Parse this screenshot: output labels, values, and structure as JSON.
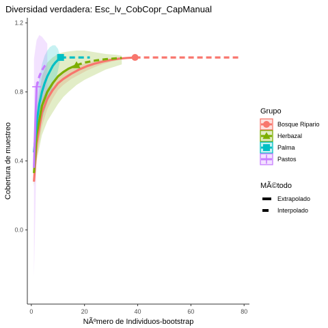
{
  "chart_data": {
    "type": "line",
    "title": "Diversidad verdadera: Esc_lv_CobCopr_CapManual",
    "xlabel": "NÃºmero de Individuos-bootstrap",
    "ylabel": "Cobertura de muestreo",
    "xlim": [
      -1.5,
      82
    ],
    "ylim": [
      -0.43,
      1.23
    ],
    "x_ticks": [
      0,
      20,
      40,
      60,
      80
    ],
    "y_ticks": [
      0.0,
      0.4,
      0.8,
      1.2
    ],
    "x_tick_labels": [
      "0",
      "20",
      "40",
      "60",
      "80"
    ],
    "y_tick_labels": [
      "0.0",
      "0.4",
      "0.8",
      "1.2"
    ],
    "grid": false,
    "legend_position": "right",
    "legend_groups": [
      {
        "title": "Grupo",
        "entries": [
          {
            "label": "Bosque Ripario",
            "color": "#F8766D",
            "shape": "circle"
          },
          {
            "label": "Herbazal",
            "color": "#7CAE00",
            "shape": "triangle"
          },
          {
            "label": "Palma",
            "color": "#00BFC4",
            "shape": "square"
          },
          {
            "label": "Pastos",
            "color": "#C77CFF",
            "shape": "cross"
          }
        ]
      },
      {
        "title": "MÃ©todo",
        "entries": [
          {
            "label": "Extrapolado",
            "linetype": "solid"
          },
          {
            "label": "Interpolado",
            "linetype": "dashed"
          }
        ]
      }
    ],
    "series": [
      {
        "name": "Bosque Ripario",
        "color": "#F8766D",
        "shape": "circle",
        "observed": {
          "x": 39,
          "y": 1.0
        },
        "interpolated": {
          "x": [
            1,
            2,
            4,
            6,
            8,
            10,
            12,
            15,
            18,
            21,
            24,
            27,
            30,
            33,
            36,
            39
          ],
          "y": [
            0.28,
            0.5,
            0.68,
            0.76,
            0.81,
            0.85,
            0.875,
            0.905,
            0.93,
            0.95,
            0.965,
            0.977,
            0.986,
            0.993,
            0.997,
            1.0
          ],
          "lower": [
            0.26,
            0.42,
            0.6,
            0.7,
            0.76,
            0.81,
            0.84,
            0.875,
            0.9,
            0.925,
            0.945,
            0.962,
            0.975,
            0.985,
            0.993,
            1.0
          ],
          "upper": [
            0.3,
            0.58,
            0.76,
            0.82,
            0.86,
            0.89,
            0.91,
            0.935,
            0.955,
            0.97,
            0.98,
            0.988,
            0.994,
            0.998,
            1.0,
            1.0
          ]
        },
        "extrapolated": {
          "x": [
            39,
            50,
            60,
            70,
            78
          ],
          "y": [
            1.0,
            1.0,
            1.0,
            1.0,
            1.0
          ],
          "lower": [
            1.0,
            1.0,
            1.0,
            1.0,
            1.0
          ],
          "upper": [
            1.0,
            1.0,
            1.0,
            1.0,
            1.0
          ]
        }
      },
      {
        "name": "Herbazal",
        "color": "#7CAE00",
        "shape": "triangle",
        "observed": {
          "x": 17,
          "y": 0.955
        },
        "interpolated": {
          "x": [
            1,
            2,
            4,
            6,
            8,
            10,
            12,
            14,
            17
          ],
          "y": [
            0.33,
            0.55,
            0.72,
            0.8,
            0.85,
            0.89,
            0.915,
            0.935,
            0.955
          ],
          "lower": [
            0.25,
            0.4,
            0.55,
            0.63,
            0.68,
            0.73,
            0.77,
            0.8,
            0.84
          ],
          "upper": [
            0.41,
            0.7,
            0.89,
            0.97,
            1.0,
            1.02,
            1.03,
            1.035,
            1.04
          ]
        },
        "extrapolated": {
          "x": [
            17,
            20,
            24,
            28,
            32,
            34
          ],
          "y": [
            0.955,
            0.97,
            0.982,
            0.99,
            0.995,
            0.997
          ],
          "lower": [
            0.84,
            0.87,
            0.9,
            0.93,
            0.95,
            0.96
          ],
          "upper": [
            1.04,
            1.04,
            1.03,
            1.02,
            1.015,
            1.01
          ]
        }
      },
      {
        "name": "Palma",
        "color": "#00BFC4",
        "shape": "square",
        "observed": {
          "x": 11,
          "y": 1.0
        },
        "interpolated": {
          "x": [
            1,
            2,
            3,
            4,
            5,
            6,
            7,
            8,
            9,
            10,
            11
          ],
          "y": [
            0.45,
            0.62,
            0.73,
            0.8,
            0.85,
            0.89,
            0.92,
            0.95,
            0.97,
            0.985,
            1.0
          ],
          "lower": [
            0.38,
            0.5,
            0.58,
            0.64,
            0.69,
            0.74,
            0.78,
            0.83,
            0.87,
            0.92,
            1.0
          ],
          "upper": [
            0.52,
            0.74,
            0.88,
            0.96,
            1.01,
            1.04,
            1.06,
            1.07,
            1.07,
            1.05,
            1.0
          ]
        },
        "extrapolated": {
          "x": [
            11,
            14,
            17,
            20,
            22
          ],
          "y": [
            1.0,
            1.0,
            1.0,
            1.0,
            1.0
          ],
          "lower": [
            1.0,
            1.0,
            1.0,
            1.0,
            1.0
          ],
          "upper": [
            1.0,
            1.0,
            1.0,
            1.0,
            1.0
          ]
        }
      },
      {
        "name": "Pastos",
        "color": "#C77CFF",
        "shape": "cross",
        "observed": {
          "x": 2,
          "y": 0.83
        },
        "interpolated": {
          "x": [
            1,
            1.5,
            2
          ],
          "y": [
            0.36,
            0.62,
            0.83
          ],
          "lower": [
            -0.27,
            0.1,
            0.45
          ],
          "upper": [
            0.99,
            1.05,
            1.1
          ]
        },
        "extrapolated": {
          "x": [
            2,
            3,
            4,
            5,
            6
          ],
          "y": [
            0.83,
            0.89,
            0.925,
            0.95,
            0.965
          ],
          "lower": [
            0.45,
            0.6,
            0.7,
            0.77,
            0.82
          ],
          "upper": [
            1.1,
            1.13,
            1.12,
            1.1,
            1.08
          ]
        }
      }
    ]
  }
}
